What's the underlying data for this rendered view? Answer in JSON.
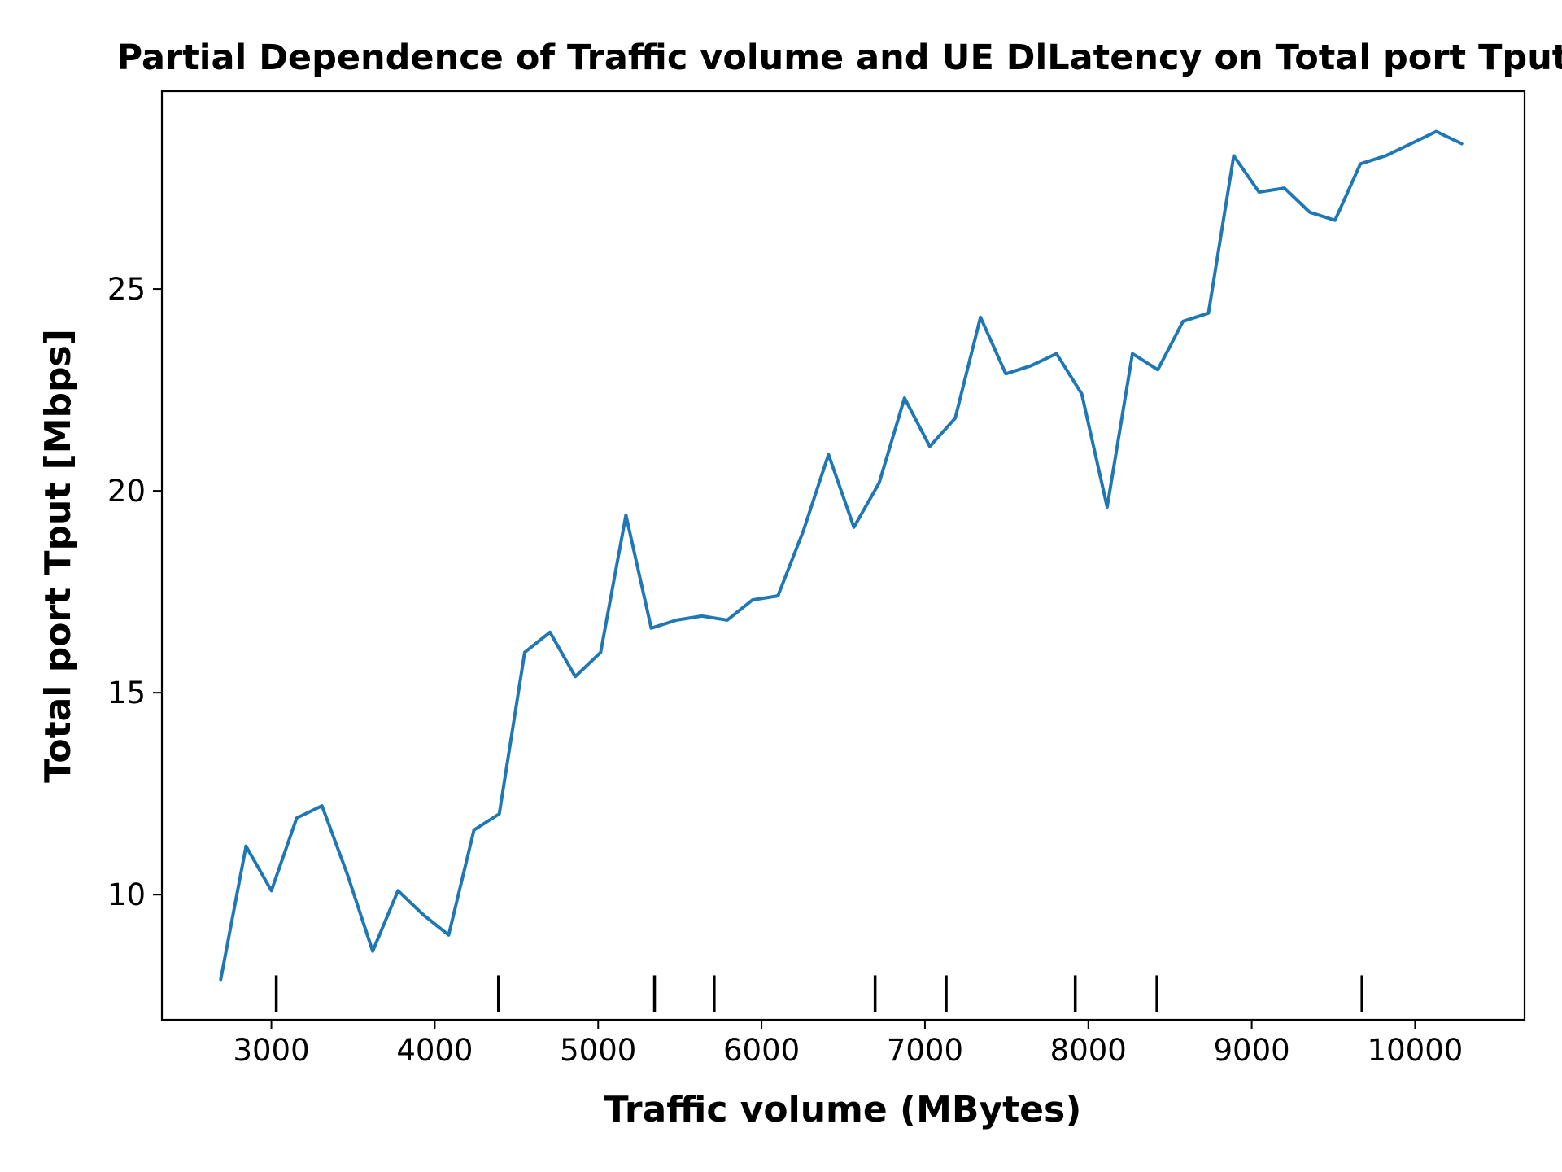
{
  "chart_data": {
    "type": "line",
    "title": "Partial Dependence of Traffic volume and UE DlLatency on Total port Tput",
    "xlabel": "Traffic volume (MBytes)",
    "ylabel": "Total port Tput [Mbps]",
    "xlim": [
      2330,
      10670
    ],
    "ylim": [
      6.9,
      29.9
    ],
    "xticks": [
      3000,
      4000,
      5000,
      6000,
      7000,
      8000,
      9000,
      10000
    ],
    "yticks": [
      10,
      15,
      20,
      25
    ],
    "grid": false,
    "series": [
      {
        "color": "#1f77b4",
        "x": [
          2690,
          2845,
          3000,
          3155,
          3310,
          3465,
          3620,
          3775,
          3930,
          4085,
          4240,
          4395,
          4550,
          4705,
          4860,
          5015,
          5170,
          5325,
          5480,
          5635,
          5790,
          5945,
          6100,
          6255,
          6410,
          6565,
          6720,
          6875,
          7030,
          7185,
          7340,
          7495,
          7650,
          7805,
          7960,
          8115,
          8270,
          8425,
          8580,
          8735,
          8890,
          9045,
          9200,
          9355,
          9510,
          9665,
          9820,
          9975,
          10130,
          10285
        ],
        "values": [
          7.9,
          11.2,
          10.1,
          11.9,
          12.2,
          10.5,
          8.6,
          10.1,
          9.5,
          9.0,
          11.6,
          12.0,
          16.0,
          16.5,
          15.4,
          16.0,
          19.4,
          16.6,
          16.8,
          16.9,
          16.8,
          17.3,
          17.4,
          19.0,
          20.9,
          19.1,
          20.2,
          22.3,
          21.1,
          21.8,
          24.3,
          22.9,
          23.1,
          23.4,
          22.4,
          19.6,
          23.4,
          23.0,
          24.2,
          24.4,
          28.3,
          27.4,
          27.5,
          26.9,
          26.7,
          28.1,
          28.3,
          28.6,
          28.9,
          28.6
        ]
      }
    ],
    "rug": {
      "color": "#000000",
      "x": [
        3030,
        4390,
        5345,
        5710,
        6695,
        7130,
        7920,
        8420,
        9675
      ]
    }
  }
}
